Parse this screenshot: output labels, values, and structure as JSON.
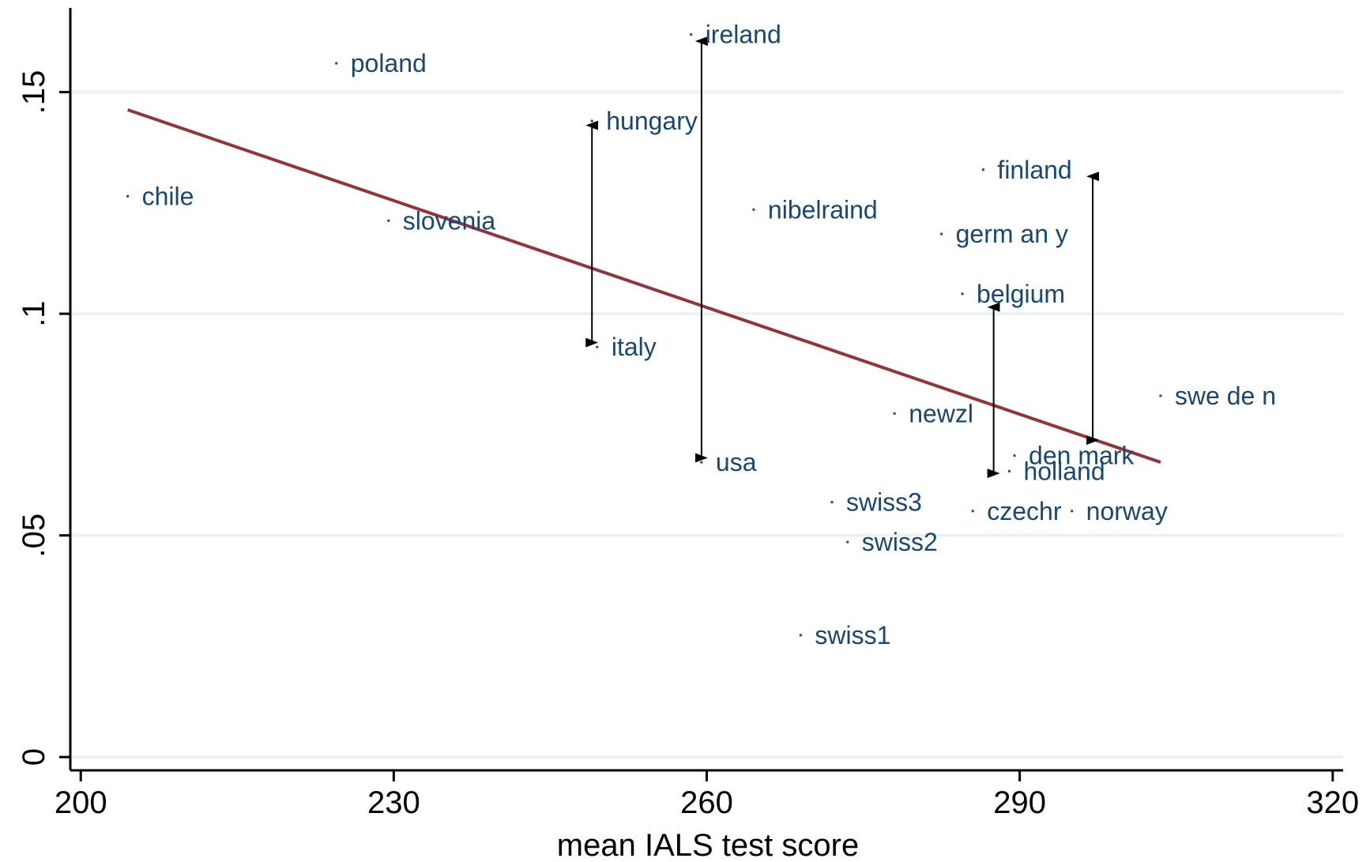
{
  "chart_data": {
    "type": "scatter",
    "xlabel": "mean IALS test score",
    "ylabel": "",
    "xlim": [
      199,
      321
    ],
    "ylim": [
      -0.003,
      0.169
    ],
    "x_ticks": [
      {
        "value": 200,
        "label": "200"
      },
      {
        "value": 230,
        "label": "230"
      },
      {
        "value": 260,
        "label": "260"
      },
      {
        "value": 290,
        "label": "290"
      },
      {
        "value": 320,
        "label": "320"
      }
    ],
    "y_ticks": [
      {
        "value": 0,
        "label": "0"
      },
      {
        "value": 0.05,
        "label": ".05"
      },
      {
        "value": 0.1,
        "label": ".1"
      },
      {
        "value": 0.15,
        "label": ".15"
      }
    ],
    "grid": true,
    "points": [
      {
        "label": "chile",
        "x": 204.5,
        "y": 0.1265
      },
      {
        "label": "poland",
        "x": 224.5,
        "y": 0.1565
      },
      {
        "label": "slovenia",
        "x": 229.5,
        "y": 0.121
      },
      {
        "label": "hungary",
        "x": 249,
        "y": 0.1435
      },
      {
        "label": "italy",
        "x": 249.5,
        "y": 0.0925
      },
      {
        "label": "ireland",
        "x": 258.5,
        "y": 0.163
      },
      {
        "label": "usa",
        "x": 259.5,
        "y": 0.0665
      },
      {
        "label": "nibelraind",
        "x": 264.5,
        "y": 0.1235
      },
      {
        "label": "germ an y",
        "x": 282.5,
        "y": 0.118
      },
      {
        "label": "belgium",
        "x": 284.5,
        "y": 0.1045
      },
      {
        "label": "finland",
        "x": 286.5,
        "y": 0.1325
      },
      {
        "label": "newzl",
        "x": 278,
        "y": 0.0775
      },
      {
        "label": "swiss3",
        "x": 272,
        "y": 0.0575
      },
      {
        "label": "swiss2",
        "x": 273.5,
        "y": 0.0485
      },
      {
        "label": "swiss1",
        "x": 269,
        "y": 0.0275
      },
      {
        "label": "czechr",
        "x": 285.5,
        "y": 0.0555
      },
      {
        "label": "norway",
        "x": 295,
        "y": 0.0555
      },
      {
        "label": "den mark",
        "x": 289.5,
        "y": 0.068
      },
      {
        "label": "holland",
        "x": 289,
        "y": 0.0645
      },
      {
        "label": "swe de n",
        "x": 303.5,
        "y": 0.0815
      }
    ],
    "fit_line": {
      "x": [
        204.5,
        303.5
      ],
      "y": [
        0.146,
        0.0665
      ]
    },
    "arrows": [
      {
        "x": 249,
        "y_from": 0.0935,
        "y_to": 0.1425
      },
      {
        "x": 259.5,
        "y_from": 0.0675,
        "y_to": 0.1615
      },
      {
        "x": 287.5,
        "y_from": 0.064,
        "y_to": 0.1015
      },
      {
        "x": 297,
        "y_from": 0.0715,
        "y_to": 0.131
      }
    ],
    "colors": {
      "points": "#1f4e79",
      "labels": "#1a476f",
      "fit_line": "#90353b",
      "grid": "#eaf2f3",
      "axes": "#000000",
      "arrows": "#000000"
    }
  }
}
